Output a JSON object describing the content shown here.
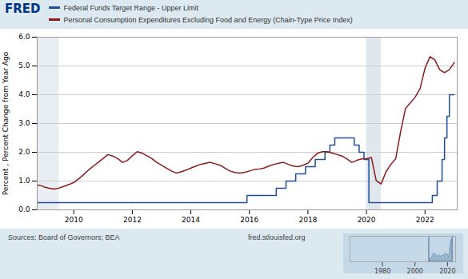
{
  "chart_data": [
    {
      "type": "line",
      "title": "FRED",
      "ylabel": "Percent , Percent Change from Year Ago",
      "xlim": [
        2008.75,
        2023.1
      ],
      "xticks": [
        2010,
        2012,
        2014,
        2016,
        2018,
        2020,
        2022
      ],
      "ylim": [
        0,
        6
      ],
      "yticks": [
        0,
        1,
        2,
        3,
        4,
        5,
        6
      ],
      "grid": true,
      "bands": [
        {
          "x0": 2008.75,
          "x1": 2009.5,
          "color": "#e8eef2"
        },
        {
          "x0": 2020.0,
          "x1": 2020.5,
          "color": "#e0e8ee"
        }
      ],
      "annotations": [
        "Sources: Board of Governors; BEA",
        "fred.stlouisfed.org"
      ],
      "series": [
        {
          "name": "Federal Funds Target Range - Upper Limit",
          "color": "#1f4e96",
          "x": [
            2008.75,
            2015.917,
            2015.917,
            2016.917,
            2016.917,
            2017.25,
            2017.25,
            2017.583,
            2017.583,
            2017.917,
            2017.917,
            2018.25,
            2018.25,
            2018.583,
            2018.583,
            2018.75,
            2018.75,
            2018.917,
            2018.917,
            2019.583,
            2019.583,
            2019.75,
            2019.75,
            2019.917,
            2019.917,
            2020.083,
            2020.083,
            2022.25,
            2022.25,
            2022.417,
            2022.417,
            2022.583,
            2022.583,
            2022.667,
            2022.667,
            2022.75,
            2022.75,
            2022.833,
            2022.833,
            2023.0
          ],
          "values": [
            0.25,
            0.25,
            0.5,
            0.5,
            0.75,
            0.75,
            1.0,
            1.0,
            1.25,
            1.25,
            1.5,
            1.5,
            1.75,
            1.75,
            2.0,
            2.0,
            2.25,
            2.25,
            2.5,
            2.5,
            2.25,
            2.25,
            2.0,
            2.0,
            1.75,
            1.75,
            0.25,
            0.25,
            0.5,
            0.5,
            1.0,
            1.0,
            1.75,
            1.75,
            2.5,
            2.5,
            3.25,
            3.25,
            4.0,
            4.0
          ]
        },
        {
          "name": "Personal Consumption Expenditures Excluding Food and Energy (Chain-Type Price Index)",
          "color": "#8b1a1a",
          "x": [
            2008.75,
            2008.917,
            2009.0,
            2009.167,
            2009.333,
            2009.5,
            2009.667,
            2009.833,
            2010.0,
            2010.167,
            2010.333,
            2010.5,
            2010.667,
            2010.833,
            2011.0,
            2011.167,
            2011.333,
            2011.5,
            2011.667,
            2011.833,
            2012.0,
            2012.167,
            2012.333,
            2012.5,
            2012.667,
            2012.833,
            2013.0,
            2013.167,
            2013.333,
            2013.5,
            2013.667,
            2013.833,
            2014.0,
            2014.167,
            2014.333,
            2014.5,
            2014.667,
            2014.833,
            2015.0,
            2015.167,
            2015.333,
            2015.5,
            2015.667,
            2015.833,
            2016.0,
            2016.167,
            2016.333,
            2016.5,
            2016.667,
            2016.833,
            2017.0,
            2017.167,
            2017.333,
            2017.5,
            2017.667,
            2017.833,
            2018.0,
            2018.167,
            2018.333,
            2018.5,
            2018.667,
            2018.833,
            2019.0,
            2019.167,
            2019.333,
            2019.5,
            2019.667,
            2019.833,
            2020.0,
            2020.167,
            2020.333,
            2020.5,
            2020.667,
            2020.833,
            2021.0,
            2021.167,
            2021.333,
            2021.5,
            2021.667,
            2021.833,
            2022.0,
            2022.167,
            2022.333,
            2022.5,
            2022.667,
            2022.833,
            2023.0
          ],
          "values": [
            0.87,
            0.83,
            0.79,
            0.75,
            0.72,
            0.76,
            0.82,
            0.88,
            0.95,
            1.08,
            1.22,
            1.38,
            1.52,
            1.65,
            1.78,
            1.92,
            1.87,
            1.78,
            1.65,
            1.72,
            1.88,
            2.02,
            1.97,
            1.88,
            1.78,
            1.65,
            1.55,
            1.45,
            1.35,
            1.28,
            1.32,
            1.38,
            1.45,
            1.52,
            1.58,
            1.62,
            1.65,
            1.6,
            1.55,
            1.45,
            1.35,
            1.3,
            1.28,
            1.3,
            1.35,
            1.4,
            1.42,
            1.45,
            1.52,
            1.58,
            1.62,
            1.65,
            1.58,
            1.52,
            1.5,
            1.55,
            1.62,
            1.82,
            1.97,
            2.02,
            2.02,
            1.97,
            1.92,
            1.87,
            1.77,
            1.65,
            1.72,
            1.77,
            1.78,
            1.82,
            1.02,
            0.9,
            1.32,
            1.58,
            1.78,
            2.72,
            3.52,
            3.72,
            3.92,
            4.22,
            4.92,
            5.32,
            5.22,
            4.87,
            4.77,
            4.87,
            5.12
          ]
        }
      ]
    },
    {
      "type": "area",
      "xlim": [
        1960,
        2025
      ],
      "xticks": [
        1980,
        2000,
        2020
      ],
      "ylim": [
        0,
        6
      ],
      "tick_labels": "x",
      "series": [
        {
          "color": "#7a9fc0",
          "x": [
            2008.75,
            2008.917,
            2009.0,
            2009.167,
            2009.333,
            2009.5,
            2009.667,
            2009.833,
            2010.0,
            2010.167,
            2010.333,
            2010.5,
            2010.667,
            2010.833,
            2011.0,
            2011.167,
            2011.333,
            2011.5,
            2011.667,
            2011.833,
            2012.0,
            2012.167,
            2012.333,
            2012.5,
            2012.667,
            2012.833,
            2013.0,
            2013.167,
            2013.333,
            2013.5,
            2013.667,
            2013.833,
            2014.0,
            2014.167,
            2014.333,
            2014.5,
            2014.667,
            2014.833,
            2015.0,
            2015.167,
            2015.333,
            2015.5,
            2015.667,
            2015.833,
            2016.0,
            2016.167,
            2016.333,
            2016.5,
            2016.667,
            2016.833,
            2017.0,
            2017.167,
            2017.333,
            2017.5,
            2017.667,
            2017.833,
            2018.0,
            2018.167,
            2018.333,
            2018.5,
            2018.667,
            2018.833,
            2019.0,
            2019.167,
            2019.333,
            2019.5,
            2019.667,
            2019.833,
            2020.0,
            2020.167,
            2020.333,
            2020.5,
            2020.667,
            2020.833,
            2021.0,
            2021.167,
            2021.333,
            2021.5,
            2021.667,
            2021.833,
            2022.0,
            2022.167,
            2022.333,
            2022.5,
            2022.667,
            2022.833,
            2023.0
          ],
          "values": [
            0.87,
            0.83,
            0.79,
            0.75,
            0.72,
            0.76,
            0.82,
            0.88,
            0.95,
            1.08,
            1.22,
            1.38,
            1.52,
            1.65,
            1.78,
            1.92,
            1.87,
            1.78,
            1.65,
            1.72,
            1.88,
            2.02,
            1.97,
            1.88,
            1.78,
            1.65,
            1.55,
            1.45,
            1.35,
            1.28,
            1.32,
            1.38,
            1.45,
            1.52,
            1.58,
            1.62,
            1.65,
            1.6,
            1.55,
            1.45,
            1.35,
            1.3,
            1.28,
            1.3,
            1.35,
            1.4,
            1.42,
            1.45,
            1.52,
            1.58,
            1.62,
            1.65,
            1.58,
            1.52,
            1.5,
            1.55,
            1.62,
            1.82,
            1.97,
            2.02,
            2.02,
            1.97,
            1.92,
            1.87,
            1.77,
            1.65,
            1.72,
            1.77,
            1.78,
            1.82,
            1.02,
            0.9,
            1.32,
            1.58,
            1.78,
            2.72,
            3.52,
            3.72,
            3.92,
            4.22,
            4.92,
            5.32,
            5.22,
            4.87,
            4.77,
            4.87,
            5.12
          ]
        }
      ]
    }
  ]
}
